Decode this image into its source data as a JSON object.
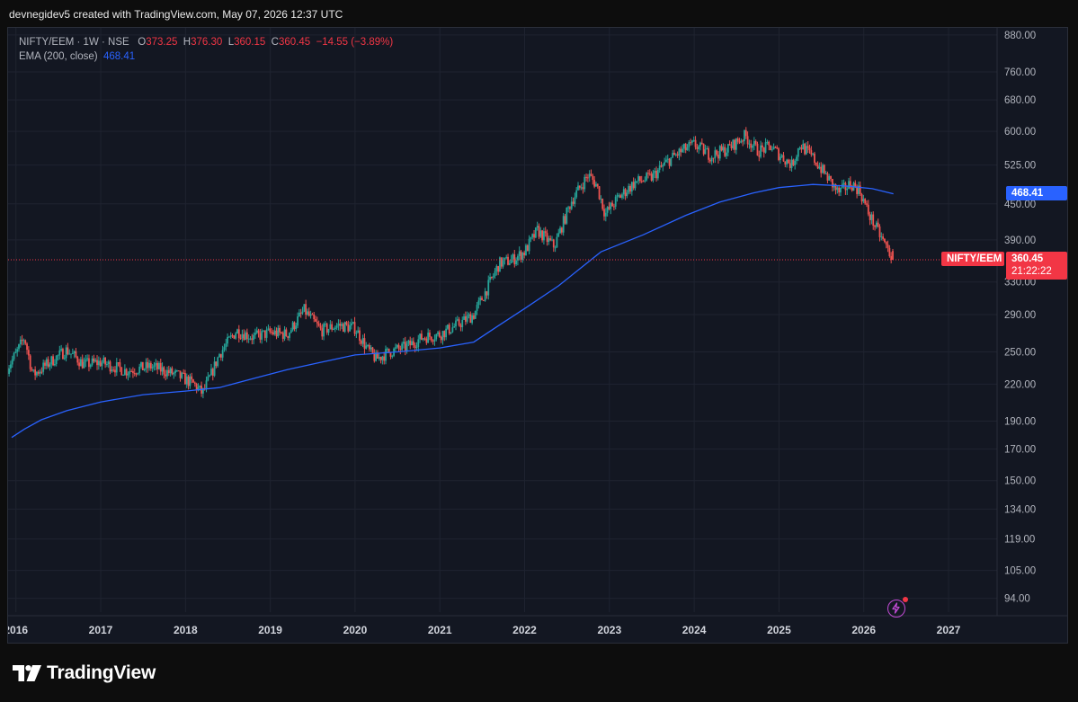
{
  "caption": "devnegidev5 created with TradingView.com, May 07, 2026 12:37 UTC",
  "legend": {
    "symbol_line": "NIFTY/EEM · 1W · NSE",
    "o_label": "O",
    "o_value": "373.25",
    "h_label": "H",
    "h_value": "376.30",
    "l_label": "L",
    "l_value": "360.15",
    "c_label": "C",
    "c_value": "360.45",
    "change": "−14.55 (−3.89%)",
    "ema_label": "EMA (200, close)",
    "ema_value": "468.41"
  },
  "price_tags": {
    "ema": "468.41",
    "symbol": "NIFTY/EEM",
    "last": "360.45",
    "countdown": "21:22:22"
  },
  "colors": {
    "up": "#26a69a",
    "down": "#ef5350",
    "ema": "#2962ff",
    "last_price": "#f23645",
    "grid": "#1f2330"
  },
  "logo_text": "TradingView",
  "icons": [
    "tradingview-logo-icon",
    "flash-icon"
  ],
  "chart_data": {
    "type": "candlestick",
    "title": "NIFTY/EEM · 1W · NSE",
    "scale": "log",
    "ylim": [
      89,
      905
    ],
    "y_ticks": [
      "880.00",
      "760.00",
      "680.00",
      "600.00",
      "525.00",
      "450.00",
      "390.00",
      "330.00",
      "290.00",
      "250.00",
      "220.00",
      "190.00",
      "170.00",
      "150.00",
      "134.00",
      "119.00",
      "105.00",
      "94.00"
    ],
    "x_ticks": [
      "2016",
      "2017",
      "2018",
      "2019",
      "2020",
      "2021",
      "2022",
      "2023",
      "2024",
      "2025",
      "2026",
      "2027"
    ],
    "anchors": [
      [
        2015.9,
        235
      ],
      [
        2016.0,
        248
      ],
      [
        2016.1,
        265
      ],
      [
        2016.2,
        228
      ],
      [
        2016.4,
        240
      ],
      [
        2016.6,
        252
      ],
      [
        2016.8,
        238
      ],
      [
        2017.0,
        240
      ],
      [
        2017.3,
        232
      ],
      [
        2017.6,
        236
      ],
      [
        2017.9,
        228
      ],
      [
        2018.1,
        220
      ],
      [
        2018.2,
        212
      ],
      [
        2018.3,
        228
      ],
      [
        2018.4,
        248
      ],
      [
        2018.6,
        272
      ],
      [
        2018.8,
        265
      ],
      [
        2019.0,
        270
      ],
      [
        2019.2,
        268
      ],
      [
        2019.4,
        295
      ],
      [
        2019.6,
        272
      ],
      [
        2019.8,
        278
      ],
      [
        2020.0,
        275
      ],
      [
        2020.15,
        252
      ],
      [
        2020.25,
        243
      ],
      [
        2020.4,
        250
      ],
      [
        2020.6,
        255
      ],
      [
        2020.8,
        265
      ],
      [
        2021.0,
        268
      ],
      [
        2021.2,
        278
      ],
      [
        2021.4,
        290
      ],
      [
        2021.55,
        320
      ],
      [
        2021.7,
        355
      ],
      [
        2021.85,
        360
      ],
      [
        2022.0,
        372
      ],
      [
        2022.15,
        405
      ],
      [
        2022.35,
        380
      ],
      [
        2022.55,
        455
      ],
      [
        2022.75,
        505
      ],
      [
        2022.85,
        485
      ],
      [
        2022.95,
        432
      ],
      [
        2023.1,
        460
      ],
      [
        2023.3,
        490
      ],
      [
        2023.5,
        500
      ],
      [
        2023.7,
        535
      ],
      [
        2023.85,
        555
      ],
      [
        2024.0,
        570
      ],
      [
        2024.2,
        545
      ],
      [
        2024.4,
        560
      ],
      [
        2024.6,
        590
      ],
      [
        2024.75,
        555
      ],
      [
        2024.9,
        565
      ],
      [
        2025.0,
        548
      ],
      [
        2025.15,
        525
      ],
      [
        2025.25,
        570
      ],
      [
        2025.4,
        540
      ],
      [
        2025.55,
        505
      ],
      [
        2025.7,
        470
      ],
      [
        2025.85,
        488
      ],
      [
        2025.95,
        475
      ],
      [
        2026.05,
        435
      ],
      [
        2026.2,
        395
      ],
      [
        2026.35,
        360.45
      ]
    ],
    "ema": [
      [
        2015.95,
        178
      ],
      [
        2016.1,
        184
      ],
      [
        2016.3,
        191
      ],
      [
        2016.6,
        198
      ],
      [
        2017.0,
        205
      ],
      [
        2017.5,
        211
      ],
      [
        2018.0,
        214
      ],
      [
        2018.4,
        217
      ],
      [
        2018.8,
        225
      ],
      [
        2019.2,
        233
      ],
      [
        2019.6,
        240
      ],
      [
        2020.0,
        247
      ],
      [
        2020.5,
        250
      ],
      [
        2021.0,
        254
      ],
      [
        2021.4,
        260
      ],
      [
        2021.7,
        278
      ],
      [
        2022.0,
        297
      ],
      [
        2022.4,
        325
      ],
      [
        2022.9,
        372
      ],
      [
        2023.4,
        398
      ],
      [
        2023.9,
        430
      ],
      [
        2024.3,
        453
      ],
      [
        2024.7,
        470
      ],
      [
        2025.0,
        480
      ],
      [
        2025.4,
        486
      ],
      [
        2025.8,
        483
      ],
      [
        2026.1,
        478
      ],
      [
        2026.35,
        468.41
      ]
    ],
    "last": {
      "open": 373.25,
      "high": 376.3,
      "low": 360.15,
      "close": 360.45,
      "change": -14.55,
      "change_pct": -3.89
    }
  }
}
